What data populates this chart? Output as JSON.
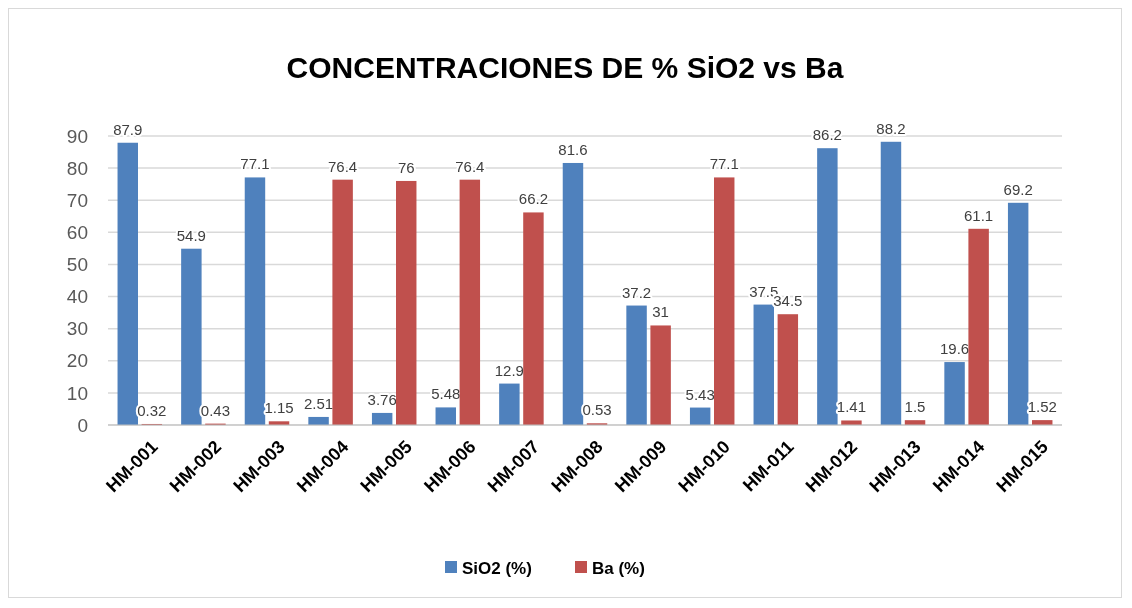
{
  "chart_data": {
    "type": "bar",
    "title": "CONCENTRACIONES DE % SiO2 vs Ba",
    "categories": [
      "HM-001",
      "HM-002",
      "HM-003",
      "HM-004",
      "HM-005",
      "HM-006",
      "HM-007",
      "HM-008",
      "HM-009",
      "HM-010",
      "HM-011",
      "HM-012",
      "HM-013",
      "HM-014",
      "HM-015"
    ],
    "series": [
      {
        "name": "SiO2 (%)",
        "color": "#4f81bd",
        "values": [
          87.9,
          54.9,
          77.1,
          2.51,
          3.76,
          5.48,
          12.9,
          81.6,
          37.2,
          5.43,
          37.5,
          86.2,
          88.2,
          19.6,
          69.2
        ]
      },
      {
        "name": "Ba (%)",
        "color": "#c0504d",
        "values": [
          0.32,
          0.43,
          1.15,
          76.4,
          76,
          76.4,
          66.2,
          0.53,
          31,
          77.1,
          34.5,
          1.41,
          1.5,
          61.1,
          1.52
        ]
      }
    ],
    "ylim": [
      0,
      90
    ],
    "yticks": [
      0,
      10,
      20,
      30,
      40,
      50,
      60,
      70,
      80,
      90
    ],
    "grid": "y",
    "legend": "bottom",
    "data_labels": true
  }
}
